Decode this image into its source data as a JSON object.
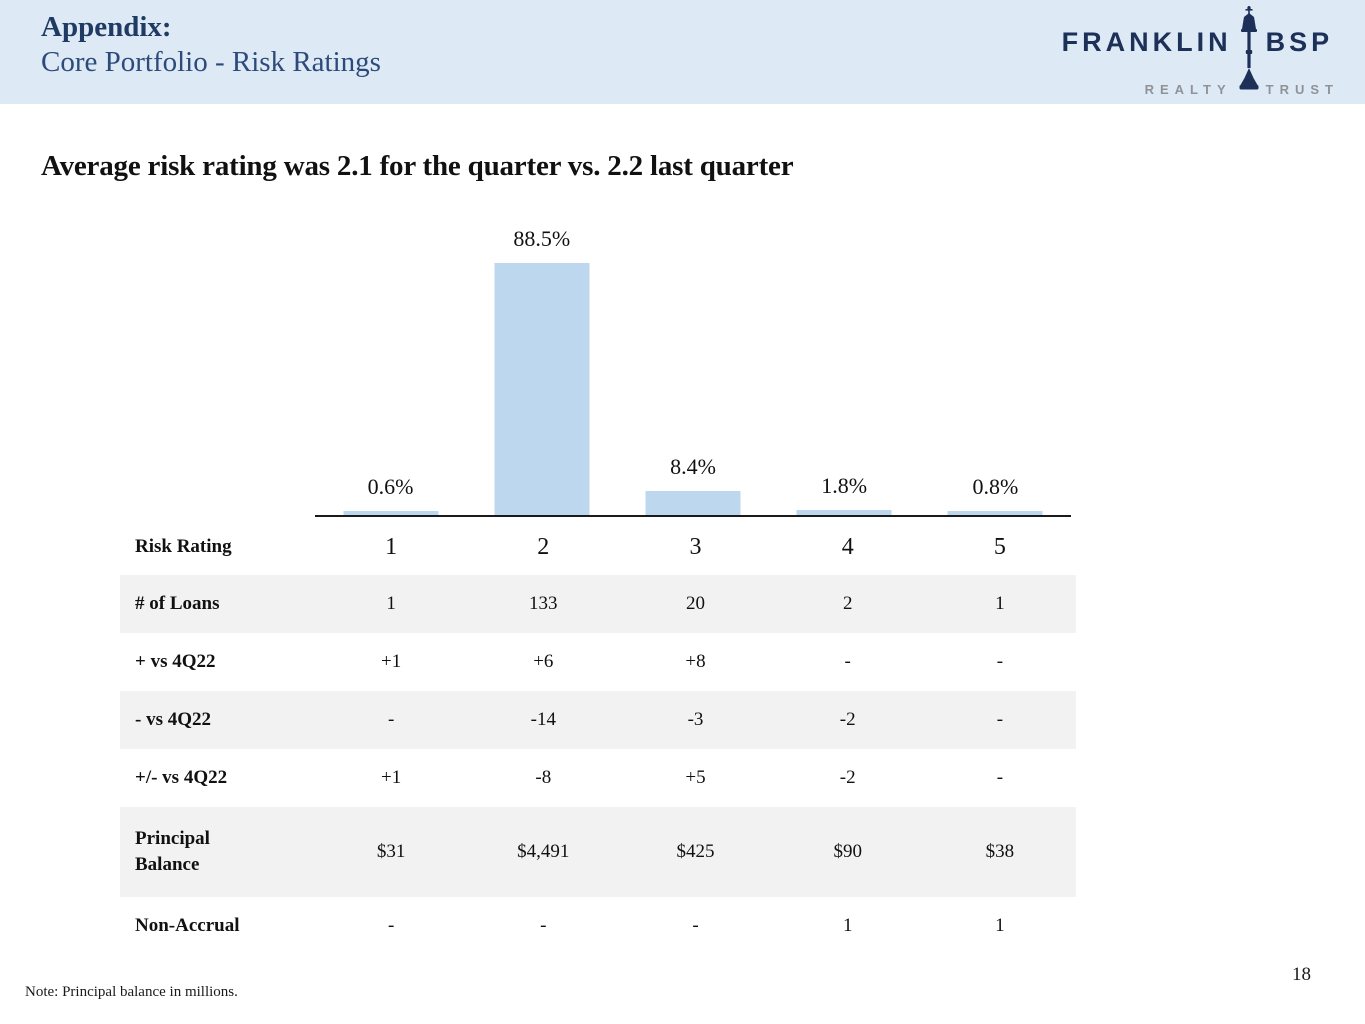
{
  "header": {
    "title_line1": "Appendix:",
    "title_line2": "Core Portfolio - Risk Ratings",
    "logo": {
      "word_top_left": "FRANKLIN",
      "word_top_right": "BSP",
      "word_bottom_left": "REALTY",
      "word_bottom_right": "TRUST",
      "icon": "lamppost-icon",
      "navy": "#1c3058",
      "gray": "#8f9397"
    },
    "background_color": "#dde9f5"
  },
  "headline": "Average risk rating was 2.1 for the quarter vs. 2.2 last quarter",
  "chart_data": {
    "type": "bar",
    "categories": [
      "1",
      "2",
      "3",
      "4",
      "5"
    ],
    "values": [
      0.6,
      88.5,
      8.4,
      1.8,
      0.8
    ],
    "data_labels": [
      "0.6%",
      "88.5%",
      "8.4%",
      "1.8%",
      "0.8%"
    ],
    "title": "",
    "xlabel": "Risk Rating",
    "ylabel": "",
    "ylim": [
      0,
      100
    ],
    "grid": false,
    "legend": false,
    "bar_color": "#bdd7ee",
    "axis_line_color": "#1a1a1a"
  },
  "table": {
    "rows": [
      {
        "label": "Risk Rating",
        "values": [
          "1",
          "2",
          "3",
          "4",
          "5"
        ]
      },
      {
        "label": "# of Loans",
        "values": [
          "1",
          "133",
          "20",
          "2",
          "1"
        ]
      },
      {
        "label": "+ vs 4Q22",
        "values": [
          "+1",
          "+6",
          "+8",
          "-",
          "-"
        ]
      },
      {
        "label": "- vs 4Q22",
        "values": [
          "-",
          "-14",
          "-3",
          "-2",
          "-"
        ]
      },
      {
        "label": "+/- vs 4Q22",
        "values": [
          "+1",
          "-8",
          "+5",
          "-2",
          "-"
        ]
      },
      {
        "label": "Principal Balance",
        "values": [
          "$31",
          "$4,491",
          "$425",
          "$90",
          "$38"
        ]
      },
      {
        "label": "Non-Accrual",
        "values": [
          "-",
          "-",
          "-",
          "1",
          "1"
        ]
      }
    ],
    "shaded_row_color": "#f2f2f2"
  },
  "footer": {
    "note": "Note: Principal balance in millions.",
    "page_number": "18"
  }
}
